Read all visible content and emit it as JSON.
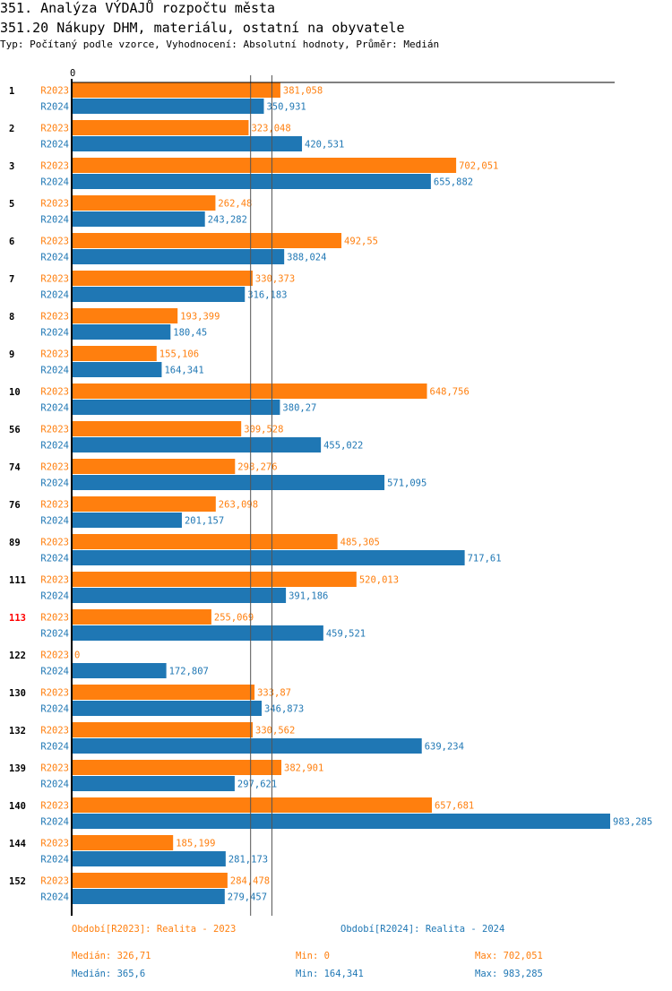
{
  "header": {
    "title": "351. Analýza VÝDAJŮ rozpočtu města",
    "subtitle": "351.20 Nákupy DHM, materiálu, ostatní na obyvatele",
    "description": "Typ: Počítaný podle vzorce, Vyhodnocení: Absolutní hodnoty, Průměr: Medián"
  },
  "chart_data": {
    "type": "bar",
    "orientation": "horizontal",
    "axis_zero_label": "0",
    "xlim": [
      0,
      983.285
    ],
    "categories": [
      "1",
      "2",
      "3",
      "5",
      "6",
      "7",
      "8",
      "9",
      "10",
      "56",
      "74",
      "76",
      "89",
      "111",
      "113",
      "122",
      "130",
      "132",
      "139",
      "140",
      "144",
      "152"
    ],
    "highlighted_category": "113",
    "highlight_color": "#ff0000",
    "series": [
      {
        "name": "R2023",
        "color": "#ff7f0e",
        "values": [
          381.058,
          323.048,
          702.051,
          262.48,
          492.55,
          330.373,
          193.399,
          155.106,
          648.756,
          309.528,
          298.276,
          263.098,
          485.305,
          520.013,
          255.069,
          0,
          333.87,
          330.562,
          382.901,
          657.681,
          185.199,
          284.478
        ],
        "labels": [
          "381,058",
          "323,048",
          "702,051",
          "262,48",
          "492,55",
          "330,373",
          "193,399",
          "155,106",
          "648,756",
          "309,528",
          "298,276",
          "263,098",
          "485,305",
          "520,013",
          "255,069",
          "0",
          "333,87",
          "330,562",
          "382,901",
          "657,681",
          "185,199",
          "284,478"
        ],
        "median": 326.71
      },
      {
        "name": "R2024",
        "color": "#1f77b4",
        "values": [
          350.931,
          420.531,
          655.882,
          243.282,
          388.024,
          316.183,
          180.45,
          164.341,
          380.27,
          455.022,
          571.095,
          201.157,
          717.61,
          391.186,
          459.521,
          172.807,
          346.873,
          639.234,
          297.621,
          983.285,
          281.173,
          279.457
        ],
        "labels": [
          "350,931",
          "420,531",
          "655,882",
          "243,282",
          "388,024",
          "316,183",
          "180,45",
          "164,341",
          "380,27",
          "455,022",
          "571,095",
          "201,157",
          "717,61",
          "391,186",
          "459,521",
          "172,807",
          "346,873",
          "639,234",
          "297,621",
          "983,285",
          "281,173",
          "279,457"
        ],
        "median": 365.6
      }
    ]
  },
  "legend": {
    "r2023": {
      "period": "Období[R2023]: Realita - 2023",
      "median": "Medián: 326,71",
      "min": "Min: 0",
      "max": "Max: 702,051"
    },
    "r2024": {
      "period": "Období[R2024]: Realita - 2024",
      "median": "Medián: 365,6",
      "min": "Min: 164,341",
      "max": "Max: 983,285"
    }
  }
}
